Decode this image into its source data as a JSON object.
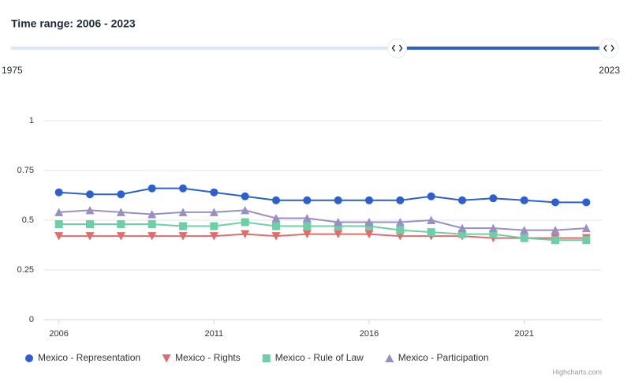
{
  "slider": {
    "label": "Time range: 2006 - 2023",
    "range": [
      1975,
      2023
    ],
    "selected": [
      2006,
      2023
    ]
  },
  "chart_data": {
    "type": "line",
    "x": [
      2006,
      2007,
      2008,
      2009,
      2010,
      2011,
      2012,
      2013,
      2014,
      2015,
      2016,
      2017,
      2018,
      2019,
      2020,
      2021,
      2022,
      2023
    ],
    "xlim": [
      2005.5,
      2023.5
    ],
    "xticks": [
      2006,
      2011,
      2016,
      2021
    ],
    "ylim": [
      0,
      1
    ],
    "yticks": [
      0,
      0.25,
      0.5,
      0.75,
      1
    ],
    "grid": true,
    "legend": "bottom",
    "credits": "Highcharts.com",
    "series": [
      {
        "name": "Mexico - Representation",
        "color": "#2c5fcf",
        "marker": "circle",
        "values": [
          0.64,
          0.63,
          0.63,
          0.66,
          0.66,
          0.64,
          0.62,
          0.6,
          0.6,
          0.6,
          0.6,
          0.6,
          0.62,
          0.6,
          0.61,
          0.6,
          0.59,
          0.59
        ]
      },
      {
        "name": "Mexico - Rights",
        "color": "#e06c6c",
        "marker": "triangle-down",
        "values": [
          0.42,
          0.42,
          0.42,
          0.42,
          0.42,
          0.42,
          0.43,
          0.42,
          0.43,
          0.43,
          0.43,
          0.42,
          0.42,
          0.42,
          0.41,
          0.41,
          0.41,
          0.41
        ]
      },
      {
        "name": "Mexico - Rule of Law",
        "color": "#6ccfa6",
        "marker": "square",
        "values": [
          0.48,
          0.48,
          0.48,
          0.48,
          0.47,
          0.47,
          0.49,
          0.47,
          0.47,
          0.47,
          0.47,
          0.45,
          0.44,
          0.43,
          0.43,
          0.41,
          0.4,
          0.4
        ]
      },
      {
        "name": "Mexico - Participation",
        "color": "#9a8ec4",
        "marker": "triangle",
        "values": [
          0.54,
          0.55,
          0.54,
          0.53,
          0.54,
          0.54,
          0.55,
          0.51,
          0.51,
          0.49,
          0.49,
          0.49,
          0.5,
          0.46,
          0.46,
          0.45,
          0.45,
          0.46
        ]
      }
    ]
  }
}
